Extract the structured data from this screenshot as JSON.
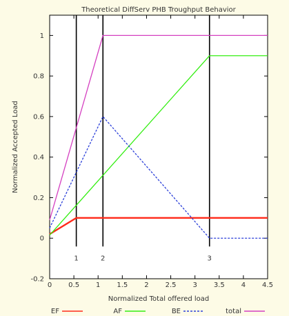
{
  "chart_data": {
    "type": "line",
    "title": "Theoretical DiffServ PHB Troughput Behavior",
    "xlabel": "Normalized Total offered load",
    "ylabel": "Normalized Accepted Load",
    "xlim": [
      0,
      4.5
    ],
    "ylim": [
      -0.2,
      1.1
    ],
    "x_ticks": [
      "0",
      "0.5",
      "1",
      "1.5",
      "2",
      "2.5",
      "3",
      "3.5",
      "4",
      "4.5"
    ],
    "y_ticks": [
      "-0.2",
      "0",
      "0.2",
      "0.4",
      "0.6",
      "0.8",
      "1"
    ],
    "grid": false,
    "legend_position": "bottom",
    "markers": [
      {
        "label": "1",
        "x": 0.55
      },
      {
        "label": "2",
        "x": 1.1
      },
      {
        "label": "3",
        "x": 3.3
      }
    ],
    "series": [
      {
        "name": "EF",
        "color": "#ff2a1a",
        "style": "solid",
        "x": [
          0,
          0.55,
          4.5
        ],
        "y": [
          0.02,
          0.1,
          0.1
        ]
      },
      {
        "name": "AF",
        "color": "#33ee11",
        "style": "solid",
        "x": [
          0,
          3.3,
          4.5
        ],
        "y": [
          0.015,
          0.9,
          0.9
        ]
      },
      {
        "name": "BE",
        "color": "#2b3fd9",
        "style": "dashed",
        "x": [
          0,
          1.1,
          3.3,
          4.5
        ],
        "y": [
          0.05,
          0.6,
          0,
          0
        ]
      },
      {
        "name": "total",
        "color": "#d43fc0",
        "style": "solid",
        "x": [
          0,
          1.1,
          4.5
        ],
        "y": [
          0.09,
          1.0,
          1.0
        ]
      }
    ]
  }
}
